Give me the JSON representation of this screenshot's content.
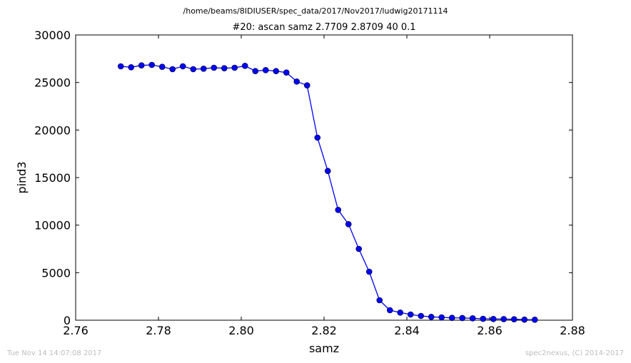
{
  "header": {
    "path": "/home/beams/8IDIUSER/spec_data/2017/Nov2017/ludwig20171114",
    "title": "#20: ascan  samz 2.7709 2.8709  40 0.1"
  },
  "footer": {
    "timestamp": "Tue Nov 14 14:07:08 2017",
    "credit": "spec2nexus, (C) 2014-2017"
  },
  "colors": {
    "series": "#0000ff",
    "axes": "#000000",
    "footer_text": "#bdbdbd"
  },
  "chart_data": {
    "type": "line",
    "xlabel": "samz",
    "ylabel": "pind3",
    "xlim": [
      2.76,
      2.88
    ],
    "ylim": [
      0,
      30000
    ],
    "xticks": [
      "2.76",
      "2.78",
      "2.80",
      "2.82",
      "2.84",
      "2.86",
      "2.88"
    ],
    "yticks": [
      "0",
      "5000",
      "10000",
      "15000",
      "20000",
      "25000",
      "30000"
    ],
    "grid": false,
    "marker": "circle",
    "x": [
      2.7709,
      2.7734,
      2.7759,
      2.7784,
      2.7809,
      2.7834,
      2.7859,
      2.7884,
      2.7909,
      2.7934,
      2.7959,
      2.7984,
      2.8009,
      2.8034,
      2.8059,
      2.8084,
      2.8109,
      2.8134,
      2.8159,
      2.8184,
      2.8209,
      2.8234,
      2.8259,
      2.8284,
      2.8309,
      2.8334,
      2.8359,
      2.8384,
      2.8409,
      2.8434,
      2.8459,
      2.8484,
      2.8509,
      2.8534,
      2.8559,
      2.8584,
      2.8609,
      2.8634,
      2.8659,
      2.8684,
      2.8709
    ],
    "y": [
      26700,
      26600,
      26800,
      26850,
      26650,
      26400,
      26700,
      26400,
      26450,
      26550,
      26500,
      26550,
      26750,
      26200,
      26300,
      26200,
      26050,
      25100,
      24700,
      19200,
      15700,
      11600,
      10100,
      7500,
      5100,
      2100,
      1050,
      800,
      600,
      450,
      350,
      300,
      250,
      230,
      200,
      150,
      130,
      120,
      100,
      60,
      50
    ]
  }
}
